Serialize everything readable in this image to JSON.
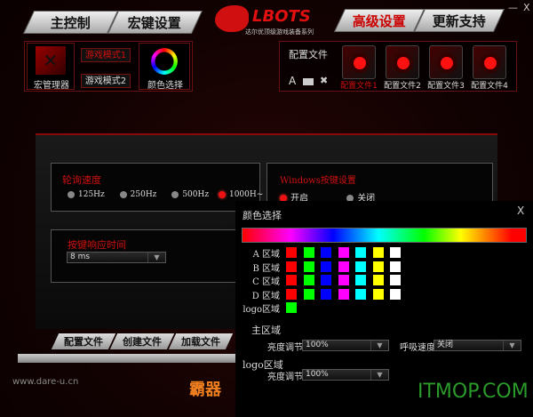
{
  "window": {
    "minimize": "—",
    "close": "X"
  },
  "tabs": [
    {
      "label": "主控制"
    },
    {
      "label": "宏键设置"
    },
    {
      "label": "高级设置",
      "active": true
    },
    {
      "label": "更新支持"
    }
  ],
  "logo": {
    "brand": "LBOTS",
    "tagline": "达尔优顶级游戏装备系列"
  },
  "macro": {
    "manager_label": "宏管理器",
    "mode1": "游戏模式1",
    "mode2": "游戏模式2",
    "color_label": "颜色选择"
  },
  "profiles": {
    "title": "配置文件",
    "tools": [
      "A",
      "folder-icon",
      "tools-icon"
    ],
    "items": [
      {
        "label": "配置文件1",
        "active": true
      },
      {
        "label": "配置文件2"
      },
      {
        "label": "配置文件3"
      },
      {
        "label": "配置文件4"
      }
    ]
  },
  "polling": {
    "title": "轮询速度",
    "options": [
      {
        "label": "125Hz"
      },
      {
        "label": "250Hz"
      },
      {
        "label": "500Hz"
      },
      {
        "label": "1000H~",
        "selected": true
      }
    ]
  },
  "windows_key": {
    "title": "Windows按键设置",
    "options": [
      {
        "label": "开启",
        "selected": true
      },
      {
        "label": "关闭"
      }
    ]
  },
  "response": {
    "title": "按键响应时间",
    "value": "8 ms"
  },
  "bottom_tabs": [
    "配置文件",
    "创建文件",
    "加载文件"
  ],
  "footer": {
    "url": "www.dare-u.cn",
    "banner": "霸器"
  },
  "dialog": {
    "title": "颜色选择",
    "close": "X",
    "rows": [
      {
        "label": "A 区域",
        "colors": [
          "#ff0000",
          "#00ff00",
          "#0000ff",
          "#ff00ff",
          "#00ffff",
          "#ffff00",
          "#ffffff"
        ]
      },
      {
        "label": "B 区域",
        "colors": [
          "#ff0000",
          "#00ff00",
          "#0000ff",
          "#ff00ff",
          "#00ffff",
          "#ffff00",
          "#ffffff"
        ]
      },
      {
        "label": "C 区域",
        "colors": [
          "#ff0000",
          "#00ff00",
          "#0000ff",
          "#ff00ff",
          "#00ffff",
          "#ffff00",
          "#ffffff"
        ]
      },
      {
        "label": "D 区域",
        "colors": [
          "#ff0000",
          "#00ff00",
          "#0000ff",
          "#ff00ff",
          "#00ffff",
          "#ffff00",
          "#ffffff"
        ]
      },
      {
        "label": "logo区域",
        "colors": [
          "#00ff00"
        ]
      }
    ],
    "main_section": "主区域",
    "brightness_label": "亮度调节",
    "brightness_value": "100%",
    "breath_label": "呼吸速度",
    "breath_value": "关闭",
    "logo_section": "logo区域",
    "logo_brightness_label": "亮度调节",
    "logo_brightness_value": "100%"
  },
  "watermark": "ITMOP.COM"
}
